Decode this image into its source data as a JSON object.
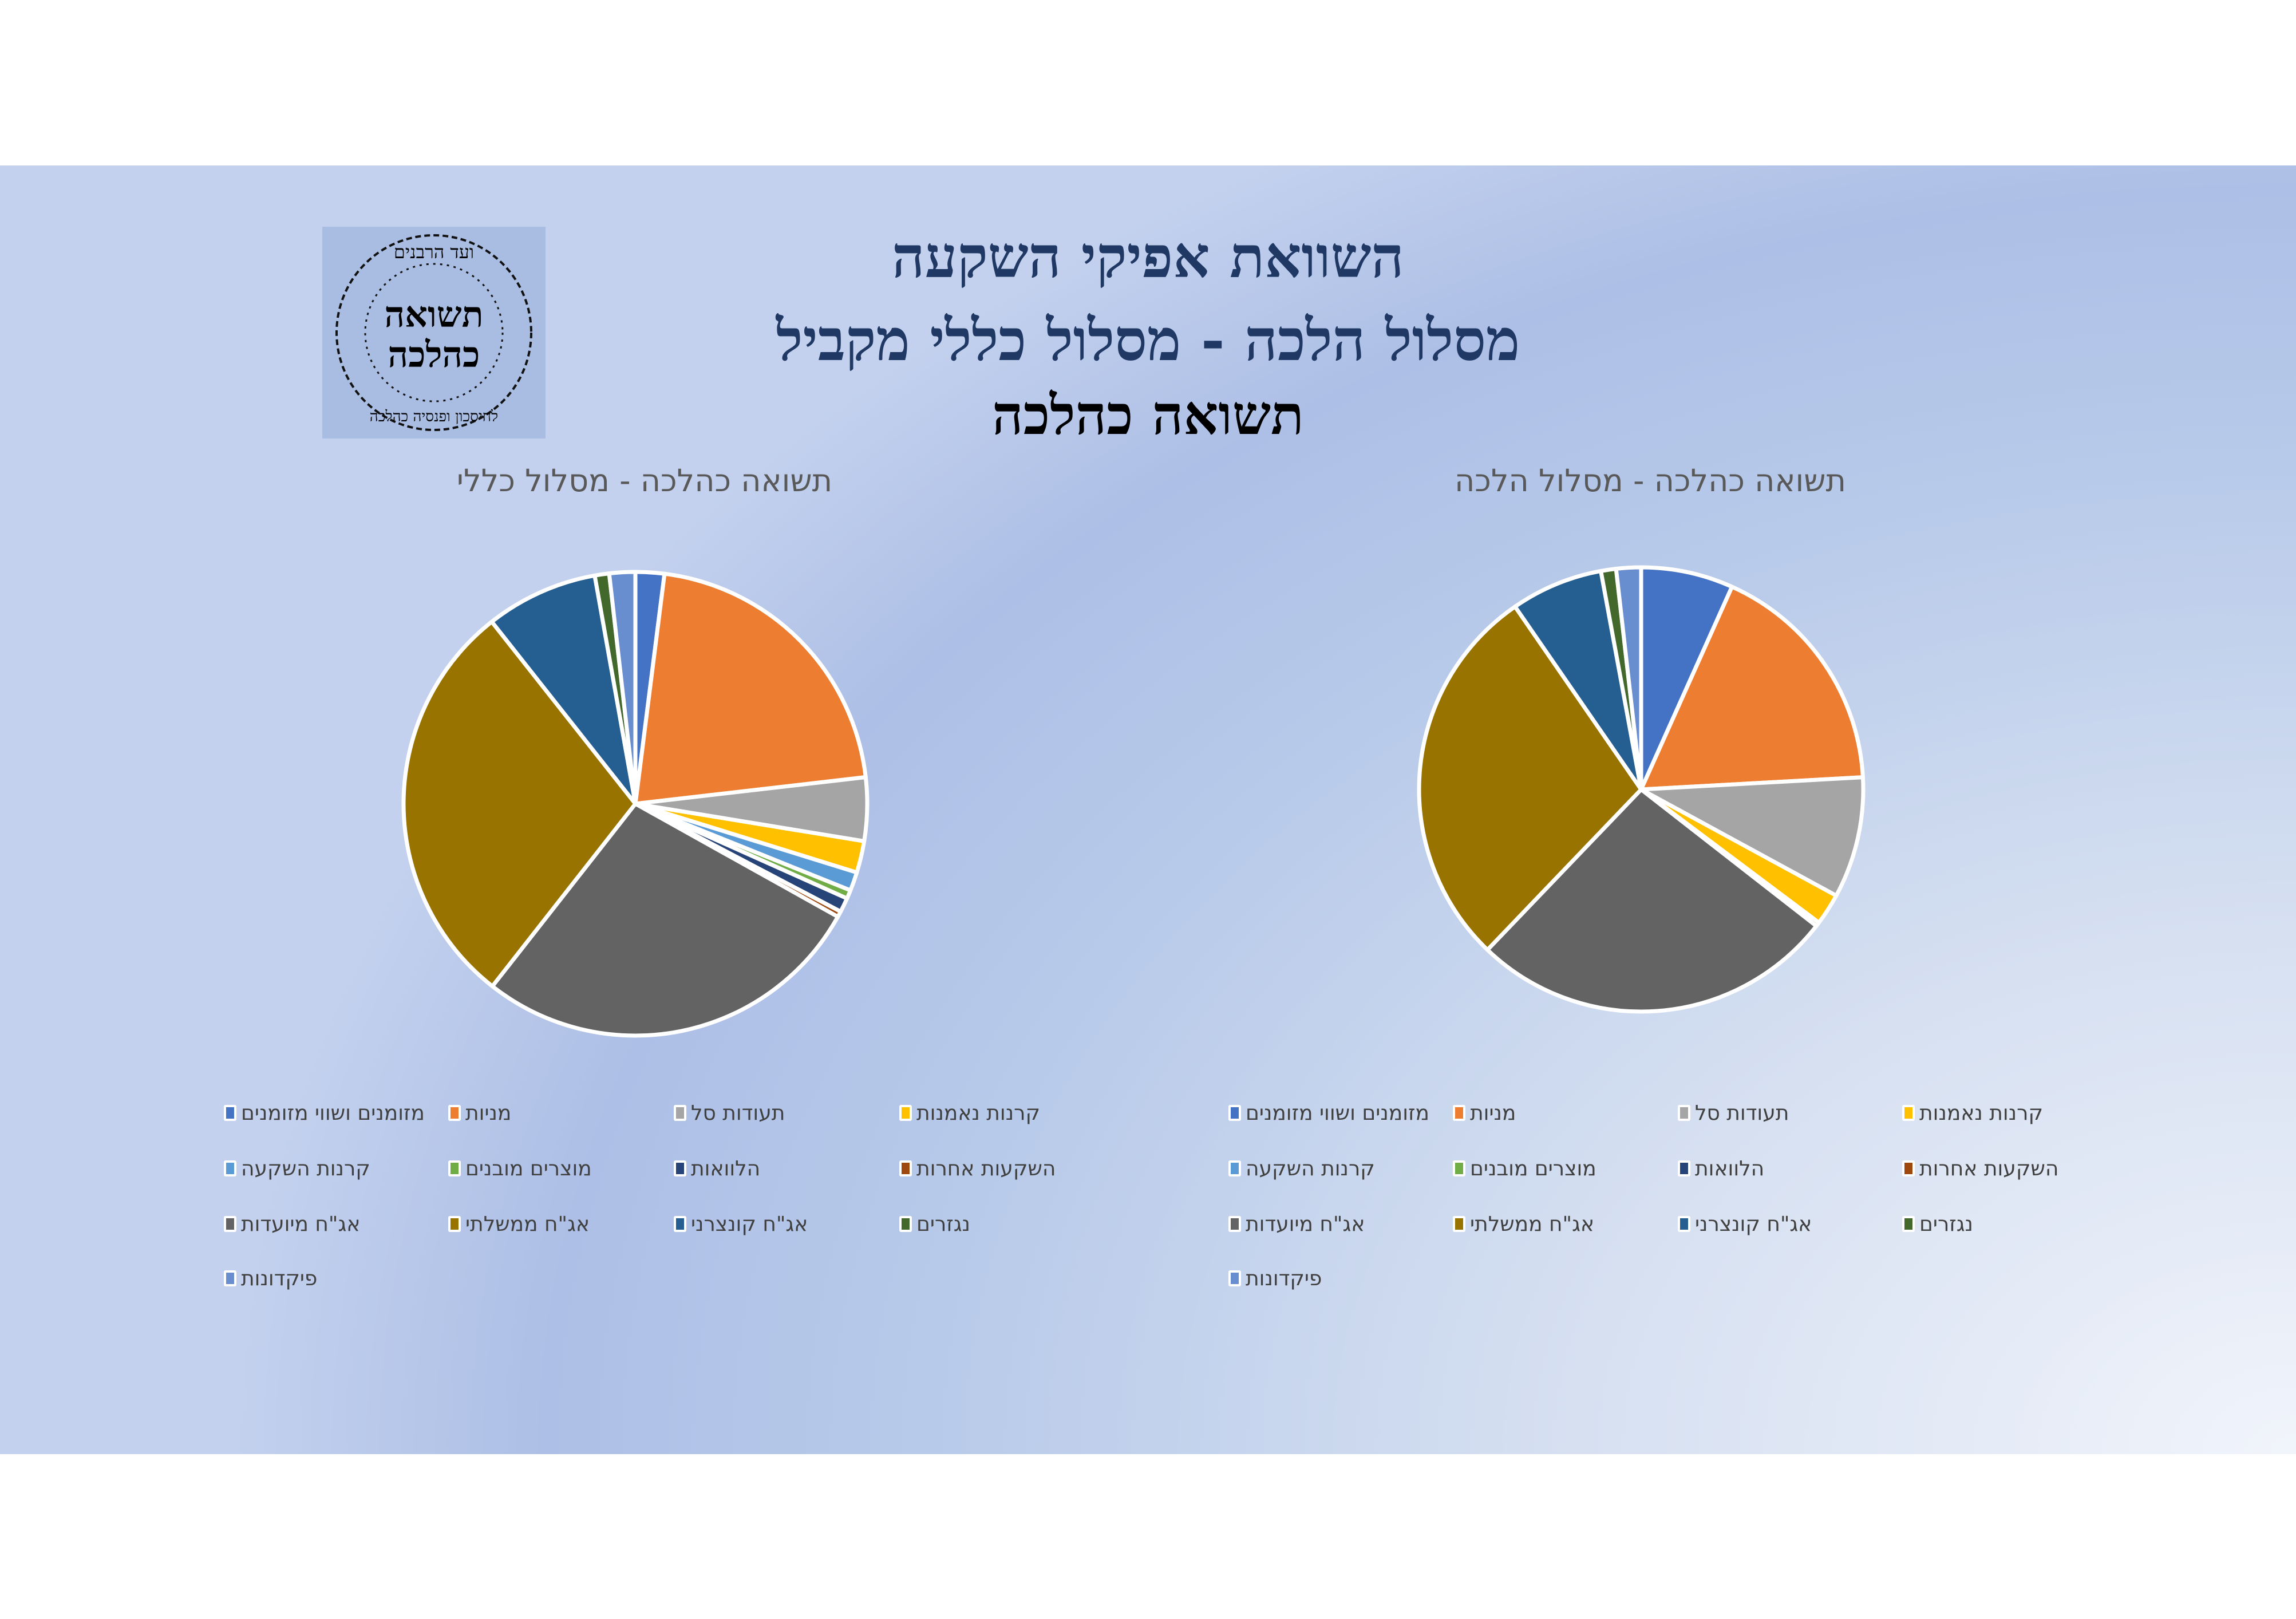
{
  "slide": {
    "title_line1": "השוואת אפיקי השקעה",
    "title_line2": "מסלול הלכה - מסלול כללי מקביל",
    "title_line3": "תשואה כהלכה",
    "logo_text": {
      "top_arc": "ועד הרבנים",
      "center": "תשואה כהלכה",
      "bottom_arc": "לחיסכון ופנסיה כהלכה"
    }
  },
  "categories": [
    "מזומנים ושווי מזומנים",
    "מניות",
    "תעודות סל",
    "קרנות נאמנות",
    "קרנות השקעה",
    "מוצרים מובנים",
    "הלוואות",
    "השקעות אחרות",
    "אג\"ח מיועדות",
    "אג\"ח ממשלתי",
    "אג\"ח קונצרני",
    "נגזרים",
    "פיקדונות"
  ],
  "colors": [
    "#4472c4",
    "#ed7d31",
    "#a5a5a5",
    "#ffc000",
    "#5b9bd5",
    "#70ad47",
    "#264478",
    "#9e480e",
    "#636363",
    "#997300",
    "#255e91",
    "#43682b",
    "#698ed0"
  ],
  "chart_data": [
    {
      "type": "pie",
      "title": "תשואה כהלכה - מסלול כללי",
      "legend": "bottom",
      "unit": "%",
      "values": [
        2.0,
        21.1,
        4.4,
        2.2,
        1.3,
        0.6,
        1.0,
        0.4,
        27.4,
        28.7,
        7.8,
        1.0,
        1.8
      ]
    },
    {
      "type": "pie",
      "title": "תשואה כהלכה - מסלול הלכה",
      "legend": "bottom",
      "unit": "%",
      "values": [
        6.7,
        17.4,
        8.8,
        2.3,
        0,
        0,
        0,
        0.3,
        26.6,
        28.2,
        6.7,
        1.1,
        1.8
      ]
    }
  ]
}
